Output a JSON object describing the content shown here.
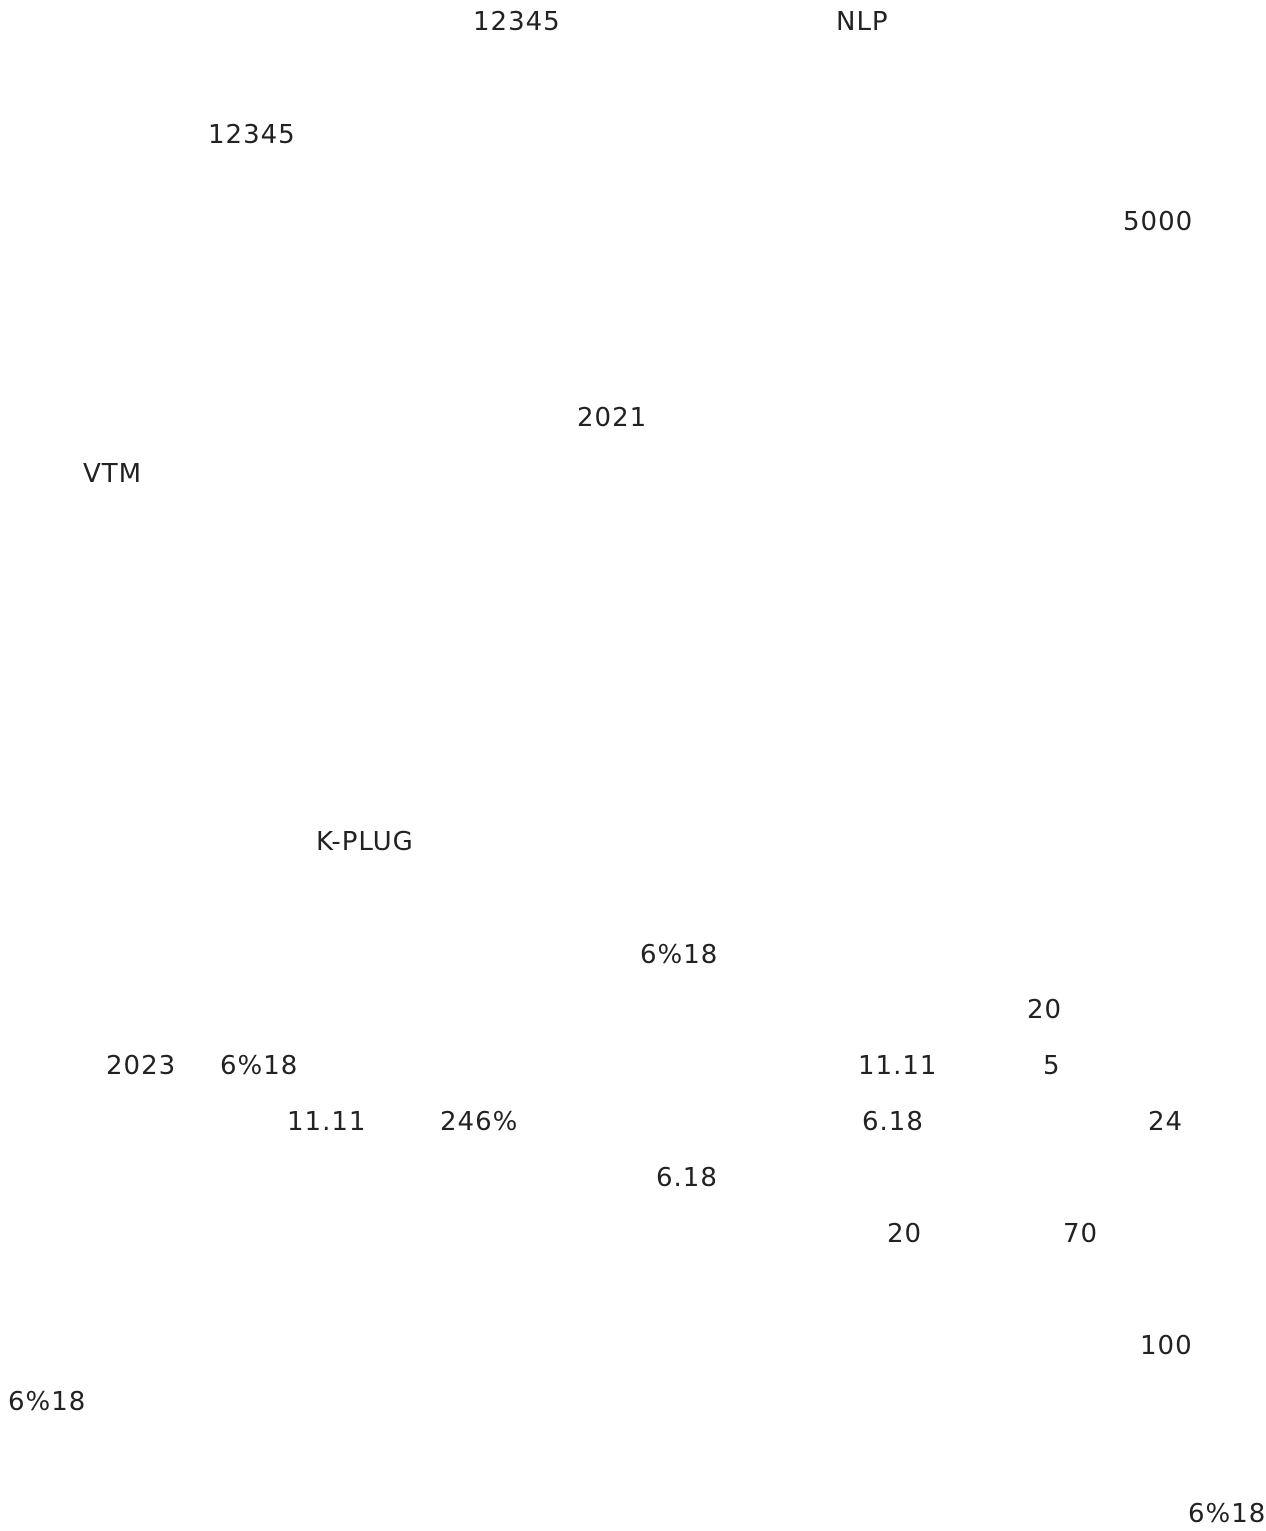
{
  "document": {
    "fragments": [
      "12345",
      "NLP",
      "12345",
      "5000",
      "2021",
      "VTM",
      "K-PLUG",
      "6%18",
      "20",
      "2023",
      "6%18",
      "11.11",
      "5",
      "11.11",
      "246%",
      "6.18",
      "24",
      "6.18",
      "20",
      "70",
      "100",
      "6%18",
      "6%18"
    ]
  }
}
